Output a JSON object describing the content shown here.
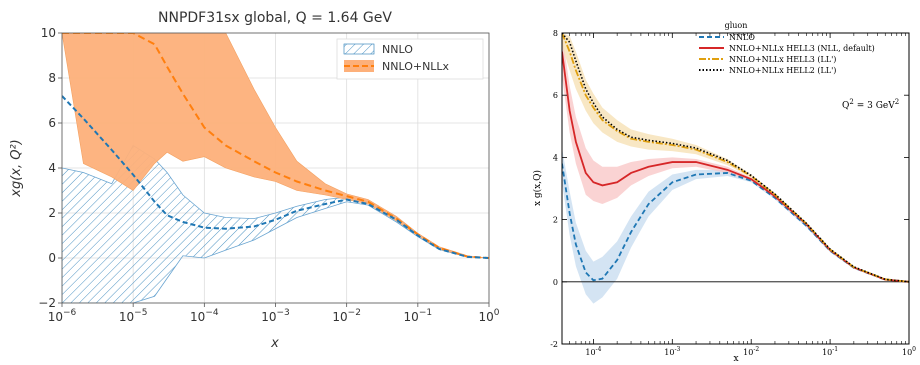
{
  "chart_data": [
    {
      "type": "line",
      "title": "NNPDF31sx global, Q = 1.64 GeV",
      "xlabel": "x",
      "ylabel": "xg(x, Q²)",
      "xscale": "log",
      "xlim": [
        1e-06,
        1
      ],
      "ylim": [
        -2,
        10
      ],
      "grid": true,
      "legend_position": "top-right",
      "x_ticks": [
        {
          "v": 1e-06,
          "base": "10",
          "exp": "−6"
        },
        {
          "v": 1e-05,
          "base": "10",
          "exp": "−5"
        },
        {
          "v": 0.0001,
          "base": "10",
          "exp": "−4"
        },
        {
          "v": 0.001,
          "base": "10",
          "exp": "−3"
        },
        {
          "v": 0.01,
          "base": "10",
          "exp": "−2"
        },
        {
          "v": 0.1,
          "base": "10",
          "exp": "−1"
        },
        {
          "v": 1,
          "base": "10",
          "exp": "0"
        }
      ],
      "y_ticks": [
        {
          "v": -2,
          "label": "−2"
        },
        {
          "v": 0,
          "label": "0"
        },
        {
          "v": 2,
          "label": "2"
        },
        {
          "v": 4,
          "label": "4"
        },
        {
          "v": 6,
          "label": "6"
        },
        {
          "v": 8,
          "label": "8"
        },
        {
          "v": 10,
          "label": "10"
        }
      ],
      "x": [
        1e-06,
        2e-06,
        5e-06,
        1e-05,
        2e-05,
        3e-05,
        5e-05,
        0.0001,
        0.0002,
        0.0005,
        0.001,
        0.002,
        0.005,
        0.01,
        0.02,
        0.05,
        0.1,
        0.2,
        0.5,
        1
      ],
      "series": [
        {
          "name": "NNLO",
          "style": "hatched",
          "color": "#1f77b4",
          "central": [
            7.2,
            6.2,
            4.8,
            3.7,
            2.5,
            1.9,
            1.6,
            1.35,
            1.3,
            1.4,
            1.7,
            2.1,
            2.4,
            2.6,
            2.4,
            1.7,
            1.0,
            0.4,
            0.05,
            0.0
          ],
          "upper": [
            4.0,
            3.8,
            3.3,
            5.0,
            4.4,
            3.8,
            2.8,
            2.0,
            1.8,
            1.75,
            2.0,
            2.3,
            2.6,
            2.7,
            2.5,
            1.8,
            1.05,
            0.45,
            0.08,
            0.0
          ],
          "lower": [
            -2.0,
            -2.0,
            -2.0,
            -2.0,
            -1.7,
            -0.9,
            0.1,
            0.0,
            0.35,
            0.8,
            1.3,
            1.8,
            2.2,
            2.5,
            2.35,
            1.6,
            0.95,
            0.38,
            0.04,
            0.0
          ]
        },
        {
          "name": "NNLO+NLLx",
          "style": "filled",
          "color": "#ff7f0e",
          "fill": "#fdb07a",
          "central": [
            10.0,
            10.0,
            10.0,
            10.0,
            9.5,
            8.5,
            7.3,
            5.8,
            5.0,
            4.3,
            3.8,
            3.4,
            3.0,
            2.75,
            2.5,
            1.75,
            1.05,
            0.45,
            0.06,
            0.0
          ],
          "upper": [
            10.0,
            10.0,
            10.0,
            10.0,
            10.0,
            10.0,
            10.0,
            10.0,
            10.0,
            7.5,
            5.8,
            4.3,
            3.3,
            2.85,
            2.6,
            1.85,
            1.1,
            0.5,
            0.1,
            0.0
          ],
          "lower": [
            10.0,
            4.2,
            3.6,
            3.0,
            4.2,
            4.7,
            4.3,
            4.5,
            4.0,
            3.6,
            3.4,
            3.0,
            2.8,
            2.6,
            2.4,
            1.65,
            1.0,
            0.4,
            0.04,
            0.0
          ]
        }
      ]
    },
    {
      "type": "line",
      "title": "gluon",
      "xlabel": "x",
      "ylabel": "x g(x,Q)",
      "annotation": {
        "base": "Q",
        "sup1": "2",
        "mid": " = 3 GeV",
        "sup2": "2"
      },
      "xscale": "log",
      "xlim": [
        4e-05,
        1
      ],
      "ylim": [
        -2,
        8
      ],
      "legend_position": "top-right",
      "x_ticks": [
        {
          "v": 0.0001,
          "base": "10",
          "exp": "-4"
        },
        {
          "v": 0.001,
          "base": "10",
          "exp": "-3"
        },
        {
          "v": 0.01,
          "base": "10",
          "exp": "-2"
        },
        {
          "v": 0.1,
          "base": "10",
          "exp": "-1"
        },
        {
          "v": 1,
          "base": "10",
          "exp": "0"
        }
      ],
      "y_ticks": [
        {
          "v": -2,
          "label": "-2"
        },
        {
          "v": 0,
          "label": "0"
        },
        {
          "v": 2,
          "label": "2"
        },
        {
          "v": 4,
          "label": "4"
        },
        {
          "v": 6,
          "label": "6"
        },
        {
          "v": 8,
          "label": "8"
        }
      ],
      "x": [
        4e-05,
        5e-05,
        6e-05,
        8e-05,
        0.0001,
        0.00013,
        0.0002,
        0.0003,
        0.0005,
        0.001,
        0.002,
        0.005,
        0.01,
        0.02,
        0.05,
        0.1,
        0.2,
        0.5,
        1
      ],
      "series": [
        {
          "name": "NNLO",
          "dash": "5,3",
          "color": "#1f77b4",
          "band": "#c6dbef",
          "central": [
            3.8,
            2.2,
            1.2,
            0.3,
            0.05,
            0.1,
            0.7,
            1.6,
            2.5,
            3.2,
            3.45,
            3.5,
            3.25,
            2.7,
            1.8,
            1.0,
            0.45,
            0.07,
            0.0
          ],
          "upper": [
            4.3,
            2.9,
            1.9,
            1.0,
            0.65,
            0.8,
            1.3,
            2.1,
            2.9,
            3.45,
            3.6,
            3.6,
            3.3,
            2.75,
            1.85,
            1.05,
            0.48,
            0.09,
            0.0
          ],
          "lower": [
            3.2,
            1.5,
            0.5,
            -0.4,
            -0.7,
            -0.5,
            0.1,
            1.1,
            2.1,
            2.95,
            3.3,
            3.4,
            3.2,
            2.65,
            1.75,
            0.95,
            0.42,
            0.05,
            0.0
          ]
        },
        {
          "name": "NNLO+NLLx HELL3 (NLL, default)",
          "dash": "",
          "color": "#d62728",
          "band": "#f8c4c4",
          "central": [
            7.4,
            5.5,
            4.5,
            3.5,
            3.2,
            3.1,
            3.2,
            3.5,
            3.7,
            3.85,
            3.85,
            3.6,
            3.3,
            2.75,
            1.85,
            1.02,
            0.46,
            0.07,
            0.0
          ],
          "upper": [
            8.0,
            6.3,
            5.3,
            4.3,
            3.9,
            3.7,
            3.7,
            3.85,
            3.95,
            4.0,
            3.95,
            3.7,
            3.35,
            2.8,
            1.88,
            1.05,
            0.48,
            0.09,
            0.0
          ],
          "lower": [
            6.6,
            4.8,
            3.8,
            2.8,
            2.6,
            2.5,
            2.7,
            3.1,
            3.4,
            3.65,
            3.7,
            3.5,
            3.25,
            2.7,
            1.82,
            1.0,
            0.44,
            0.06,
            0.0
          ]
        },
        {
          "name": "NNLO+NLLx HELL3 (LL')",
          "dash": "7,2,2,2",
          "color": "#e0a010",
          "band": "#f6dfb0",
          "central": [
            8.0,
            7.4,
            6.8,
            6.0,
            5.6,
            5.2,
            4.85,
            4.6,
            4.5,
            4.4,
            4.25,
            3.85,
            3.4,
            2.8,
            1.87,
            1.04,
            0.47,
            0.08,
            0.0
          ],
          "upper": [
            8.0,
            7.9,
            7.4,
            6.5,
            6.05,
            5.6,
            5.2,
            4.9,
            4.75,
            4.6,
            4.4,
            3.95,
            3.45,
            2.85,
            1.9,
            1.06,
            0.49,
            0.09,
            0.0
          ],
          "lower": [
            7.6,
            6.8,
            6.2,
            5.5,
            5.1,
            4.8,
            4.5,
            4.35,
            4.25,
            4.2,
            4.1,
            3.75,
            3.35,
            2.77,
            1.84,
            1.02,
            0.45,
            0.07,
            0.0
          ]
        },
        {
          "name": "NNLO+NLLx HELL2 (LL')",
          "dash": "1.5,2",
          "color": "#000000",
          "central": [
            8.0,
            7.7,
            7.1,
            6.2,
            5.75,
            5.3,
            4.9,
            4.65,
            4.55,
            4.45,
            4.3,
            3.9,
            3.42,
            2.82,
            1.88,
            1.05,
            0.48,
            0.08,
            0.0
          ]
        }
      ]
    }
  ]
}
